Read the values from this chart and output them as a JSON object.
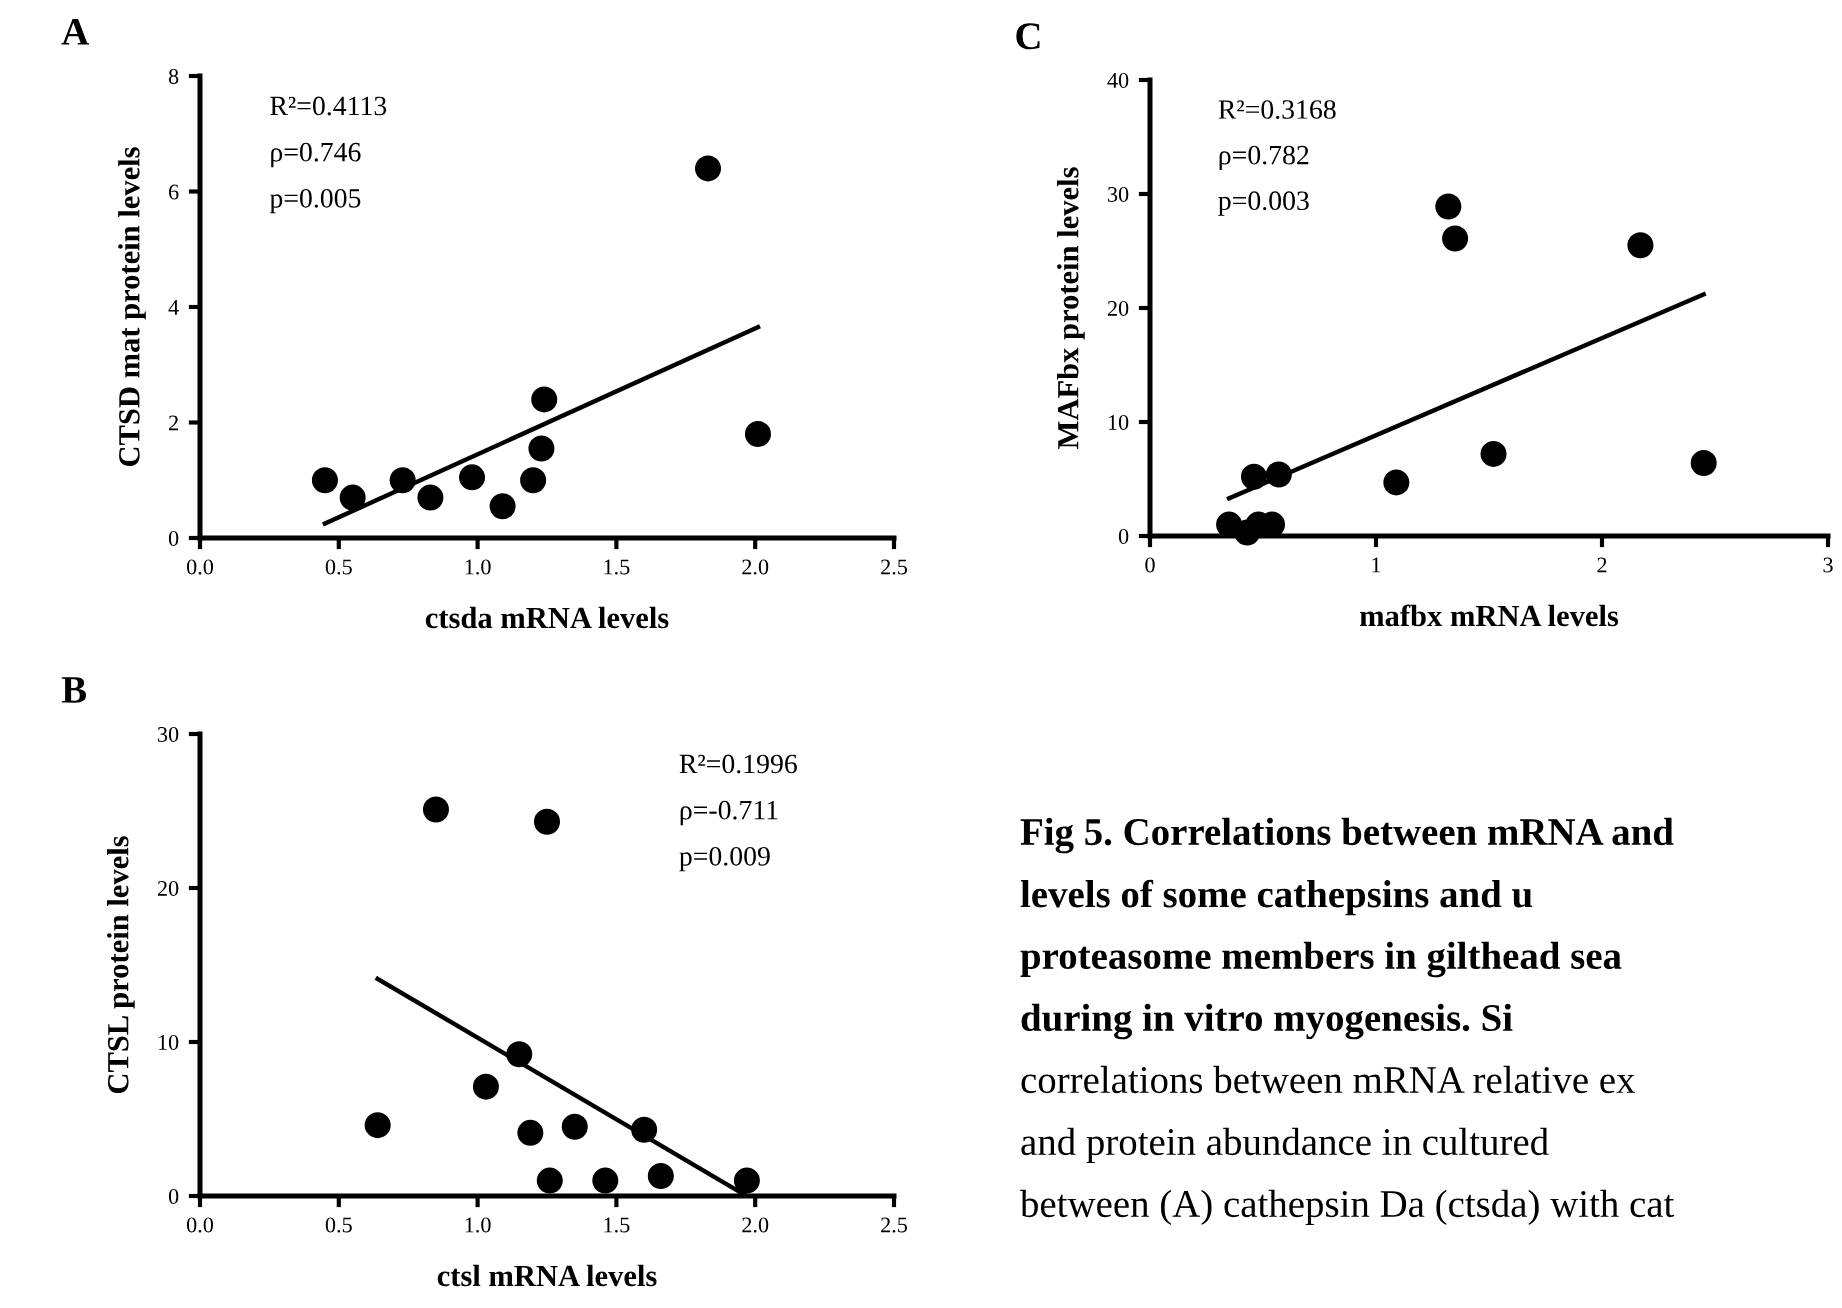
{
  "chart_data": [
    {
      "type": "scatter",
      "title": "A",
      "xlabel": "ctsda mRNA levels",
      "ylabel": "CTSD mat protein levels",
      "xlim": [
        0,
        2.5
      ],
      "xticks": [
        {
          "value": 0,
          "label": "0.0"
        },
        0.5,
        {
          "value": 1,
          "label": "1.0"
        },
        1.5,
        {
          "value": 2,
          "label": "2.0"
        },
        2.5
      ],
      "ylim": [
        0,
        8
      ],
      "yticks": [
        0,
        2,
        4,
        6,
        8
      ],
      "grid": false,
      "legend": false,
      "annotations": [
        "R²=0.4113",
        "ρ=0.746",
        "p=0.005"
      ],
      "series": [
        {
          "type": "scatter",
          "color": "#000000",
          "marker": "circle",
          "x": [
            0.45,
            0.55,
            0.73,
            0.83,
            0.98,
            1.09,
            1.2,
            1.23,
            1.24,
            1.83,
            2.01
          ],
          "values": [
            1.0,
            0.7,
            1.0,
            0.7,
            1.05,
            0.55,
            1.0,
            1.55,
            2.4,
            6.4,
            1.8
          ]
        },
        {
          "type": "line",
          "color": "#000000",
          "x": [
            0.45,
            2.01
          ],
          "values": [
            0.25,
            3.65
          ]
        }
      ]
    },
    {
      "type": "scatter",
      "title": "B",
      "xlabel": "ctsl mRNA levels",
      "ylabel": "CTSL protein levels",
      "xlim": [
        0,
        2.5
      ],
      "xticks": [
        {
          "value": 0,
          "label": "0.0"
        },
        0.5,
        {
          "value": 1,
          "label": "1.0"
        },
        1.5,
        {
          "value": 2,
          "label": "2.0"
        },
        2.5
      ],
      "ylim": [
        0,
        30
      ],
      "yticks": [
        0,
        10,
        20,
        30
      ],
      "grid": false,
      "legend": false,
      "annotations": [
        "R²=0.1996",
        "ρ=-0.711",
        "p=0.009"
      ],
      "series": [
        {
          "type": "scatter",
          "color": "#000000",
          "marker": "circle",
          "x": [
            0.64,
            0.85,
            1.03,
            1.15,
            1.19,
            1.25,
            1.26,
            1.35,
            1.46,
            1.6,
            1.66,
            1.97
          ],
          "values": [
            4.6,
            25.1,
            7.1,
            9.2,
            4.1,
            24.3,
            1.0,
            4.5,
            1.0,
            4.3,
            1.3,
            1.0
          ]
        },
        {
          "type": "line",
          "color": "#000000",
          "x": [
            0.64,
            1.96
          ],
          "values": [
            14.1,
            0.1
          ]
        }
      ]
    },
    {
      "type": "scatter",
      "title": "C",
      "xlabel": "mafbx mRNA levels",
      "ylabel": "MAFbx protein levels",
      "xlim": [
        0,
        3
      ],
      "xticks": [
        0,
        1,
        2,
        3
      ],
      "ylim": [
        0,
        40
      ],
      "yticks": [
        0,
        10,
        20,
        30,
        40
      ],
      "grid": false,
      "legend": false,
      "annotations": [
        "R²=0.3168",
        "ρ=0.782",
        "p=0.003"
      ],
      "series": [
        {
          "type": "scatter",
          "color": "#000000",
          "marker": "circle",
          "x": [
            0.35,
            0.43,
            0.46,
            0.48,
            0.54,
            0.57,
            1.09,
            1.32,
            1.35,
            1.52,
            2.17,
            2.45
          ],
          "values": [
            1.0,
            0.3,
            5.2,
            1.0,
            1.0,
            5.4,
            4.7,
            28.9,
            26.1,
            7.2,
            25.5,
            6.4
          ]
        },
        {
          "type": "line",
          "color": "#000000",
          "x": [
            0.35,
            2.45
          ],
          "values": [
            3.3,
            21.2
          ]
        }
      ]
    },
    {
      "type": "other",
      "annotations": [
        "Fig 5. Correlations between mRNA and",
        "levels of some cathepsins and u",
        "proteasome members in gilthead sea",
        "during in vitro myogenesis. Si",
        "correlations between mRNA relative ex",
        "and protein abundance in cultured",
        "between (A) cathepsin Da (ctsda) with cat"
      ]
    }
  ]
}
